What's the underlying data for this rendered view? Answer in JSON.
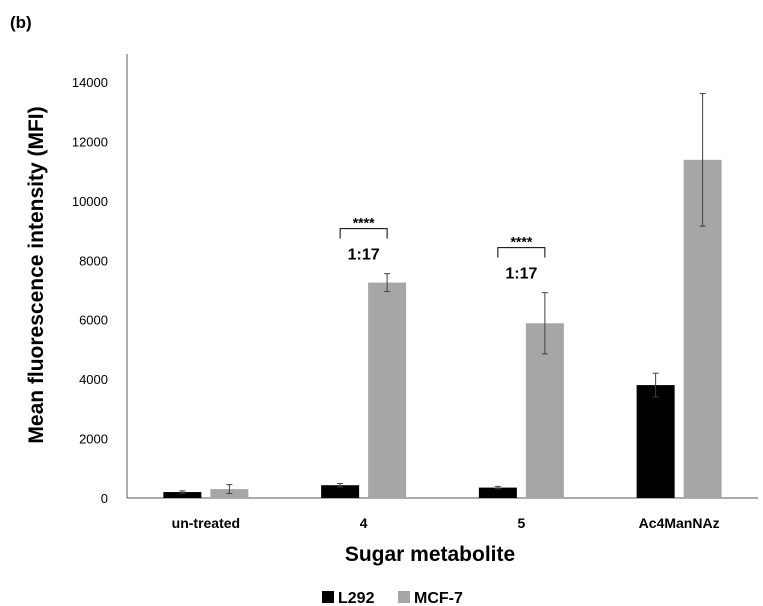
{
  "panel_label": "(b)",
  "chart_data": {
    "type": "bar",
    "title": "",
    "xlabel": "Sugar metabolite",
    "ylabel": "Mean fluorescence intensity (MFI)",
    "ylim": [
      0,
      14000
    ],
    "yticks": [
      0,
      2000,
      4000,
      6000,
      8000,
      10000,
      12000,
      14000
    ],
    "categories": [
      "un-treated",
      "4",
      "5",
      "Ac4ManNAz"
    ],
    "series": [
      {
        "name": "L292",
        "color": "#000000",
        "values": [
          200,
          430,
          350,
          3800
        ],
        "errors": [
          40,
          60,
          40,
          400
        ]
      },
      {
        "name": "MCF-7",
        "color": "#a6a6a6",
        "values": [
          300,
          7250,
          5880,
          11380
        ],
        "errors": [
          150,
          300,
          1030,
          2230
        ]
      }
    ],
    "legend_position": "bottom",
    "grid": false,
    "annotations": [
      {
        "category": "4",
        "stars": "****",
        "ratio": "1:17"
      },
      {
        "category": "5",
        "stars": "****",
        "ratio": "1:17"
      }
    ]
  }
}
